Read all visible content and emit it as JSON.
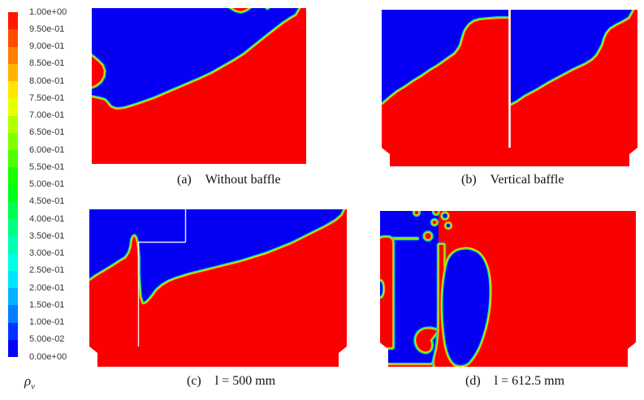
{
  "figure": {
    "background": "#ffffff",
    "colorbar": {
      "symbol": "ρ",
      "symbol_sub": "v",
      "labels": [
        "1.00e+00",
        "9.50e-01",
        "9.00e-01",
        "8.50e-01",
        "8.00e-01",
        "7.50e-01",
        "7.00e-01",
        "6.50e-01",
        "6.00e-01",
        "5.50e-01",
        "5.00e-01",
        "4.50e-01",
        "4.00e-01",
        "3.50e-01",
        "3.00e-01",
        "2.50e-01",
        "2.00e-01",
        "1.50e-01",
        "1.00e-01",
        "5.00e-02",
        "0.00e+00"
      ],
      "segment_colors": [
        "#ff1900",
        "#ff4c00",
        "#ff7f00",
        "#ffb200",
        "#ffe500",
        "#e8ff00",
        "#b2ff00",
        "#7fff00",
        "#4cff00",
        "#19ff00",
        "#00ff19",
        "#00ff4c",
        "#00ff7f",
        "#00ffb2",
        "#00ffe5",
        "#00e5ff",
        "#00b2ff",
        "#007fff",
        "#0033ff",
        "#0505f5"
      ]
    },
    "colors": {
      "red": "#fb0000",
      "blue": "#0500f3",
      "orange": "#ff9100",
      "yellow": "#fff200",
      "green": "#1ae500",
      "cyan": "#00dcff",
      "baffle_line": "#ffffff"
    },
    "panels": [
      {
        "tag": "(a)",
        "label": "Without baffle"
      },
      {
        "tag": "(b)",
        "label": "Vertical baffle"
      },
      {
        "tag": "(c)",
        "label": "l = 500 mm"
      },
      {
        "tag": "(d)",
        "label": "l = 612.5 mm"
      }
    ]
  },
  "chart_data": {
    "type": "heatmap",
    "title": "",
    "legend": {
      "label": "ρv",
      "position": "left",
      "min": 0.0,
      "max": 1.0,
      "step": 0.05,
      "tick_labels": [
        "1.00e+00",
        "9.50e-01",
        "9.00e-01",
        "8.50e-01",
        "8.00e-01",
        "7.50e-01",
        "7.00e-01",
        "6.50e-01",
        "6.00e-01",
        "5.50e-01",
        "5.00e-01",
        "4.50e-01",
        "4.00e-01",
        "3.50e-01",
        "3.00e-01",
        "2.50e-01",
        "2.00e-01",
        "1.50e-01",
        "1.00e-01",
        "5.00e-02",
        "0.00e+00"
      ],
      "colormap": "rainbow blue(0)-to-red(1)"
    },
    "panels": [
      {
        "tag": "(a)",
        "caption": "Without baffle",
        "content": "rectangular tank, red (ρv≈1) lower-right region, blue (ρv≈0) upper-left wedge, diagonal interface, small red intrusion on left wall"
      },
      {
        "tag": "(b)",
        "caption": "Vertical baffle",
        "content": "chamfered-bottom tank split by vertical white baffle; each compartment has blue upper-left region over red, interface climbing toward baffle/top-right"
      },
      {
        "tag": "(c)",
        "caption": "l = 500 mm",
        "content": "chamfered-bottom tank with baffle at left third; red spike rising over baffle tip; long diagonal interface to top-right corner"
      },
      {
        "tag": "(d)",
        "caption": "l = 612.5 mm",
        "content": "mostly red; blue column left of baffle with red filament at wall, thin red jet along baffle, large blue bean-shaped blob right of baffle, droplets near top"
      }
    ]
  }
}
